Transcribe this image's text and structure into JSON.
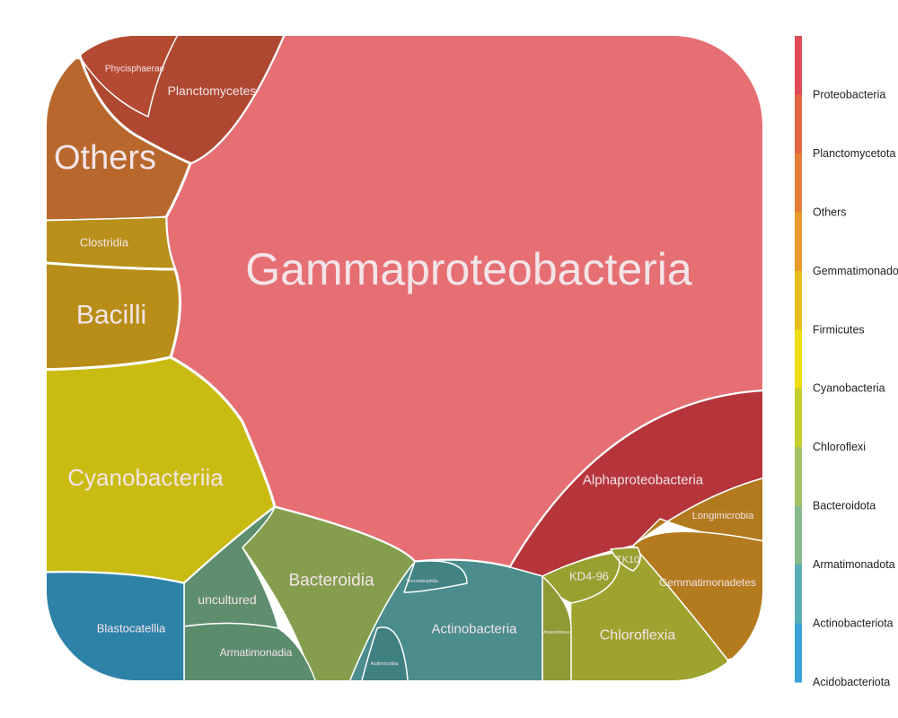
{
  "chart_data": {
    "type": "treemap",
    "title": "",
    "cells": [
      {
        "label": "Gammaproteobacteria",
        "phylum": "Proteobacteria",
        "color": "#e66f74"
      },
      {
        "label": "Alphaproteobacteria",
        "phylum": "Proteobacteria",
        "color": "#b5353b"
      },
      {
        "label": "Planctomycetes",
        "phylum": "Planctomycetota",
        "color": "#ae4830"
      },
      {
        "label": "Phycisphaerae",
        "phylum": "Planctomycetota",
        "color": "#b54a32"
      },
      {
        "label": "Others",
        "phylum": "Others",
        "color": "#b8682c"
      },
      {
        "label": "Longimicrobia",
        "phylum": "Gemmatimonadota",
        "color": "#b27a1e"
      },
      {
        "label": "Gemmatimonadetes",
        "phylum": "Gemmatimonadota",
        "color": "#b47a1e"
      },
      {
        "label": "Clostridia",
        "phylum": "Firmicutes",
        "color": "#b8901a"
      },
      {
        "label": "Bacilli",
        "phylum": "Firmicutes",
        "color": "#b88e18"
      },
      {
        "label": "Cyanobacteriia",
        "phylum": "Cyanobacteria",
        "color": "#c9bb12"
      },
      {
        "label": "Chloroflexia",
        "phylum": "Chloroflexi",
        "color": "#9da32e"
      },
      {
        "label": "KD4-96",
        "phylum": "Chloroflexi",
        "color": "#98a030"
      },
      {
        "label": "TK10",
        "phylum": "Chloroflexi",
        "color": "#98a030"
      },
      {
        "label": "Anaerolineae",
        "phylum": "Chloroflexi",
        "color": "#909a34"
      },
      {
        "label": "Bacteroidia",
        "phylum": "Bacteroidota",
        "color": "#849e4e"
      },
      {
        "label": "uncultured",
        "phylum": "Armatimonadota",
        "color": "#5e8e6e"
      },
      {
        "label": "Armatimonadia",
        "phylum": "Armatimonadota",
        "color": "#5b8c6c"
      },
      {
        "label": "Actinobacteria",
        "phylum": "Actinobacteriota",
        "color": "#4a8d8c"
      },
      {
        "label": "Thermoleophilia",
        "phylum": "Actinobacteriota",
        "color": "#418483"
      },
      {
        "label": "Acidimicrobiia",
        "phylum": "Actinobacteriota",
        "color": "#3f8080"
      },
      {
        "label": "Blastocatellia",
        "phylum": "Acidobacteriota",
        "color": "#2e82a8"
      }
    ],
    "legend": {
      "placement": "right",
      "title": "",
      "items": [
        {
          "label": "Proteobacteria",
          "color": "#e14b55"
        },
        {
          "label": "Planctomycetota",
          "color": "#e46544"
        },
        {
          "label": "Others",
          "color": "#e57f37"
        },
        {
          "label": "Gemmatimonadota",
          "color": "#e89a2a"
        },
        {
          "label": "Firmicutes",
          "color": "#e7bc1c"
        },
        {
          "label": "Cyanobacteria",
          "color": "#eede10"
        },
        {
          "label": "Chloroflexi",
          "color": "#c6cf2e"
        },
        {
          "label": "Bacteroidota",
          "color": "#a6c163"
        },
        {
          "label": "Armatimonadota",
          "color": "#86b98b"
        },
        {
          "label": "Actinobacteriota",
          "color": "#5aaeb5"
        },
        {
          "label": "Acidobacteriota",
          "color": "#3aa2d6"
        }
      ]
    }
  }
}
